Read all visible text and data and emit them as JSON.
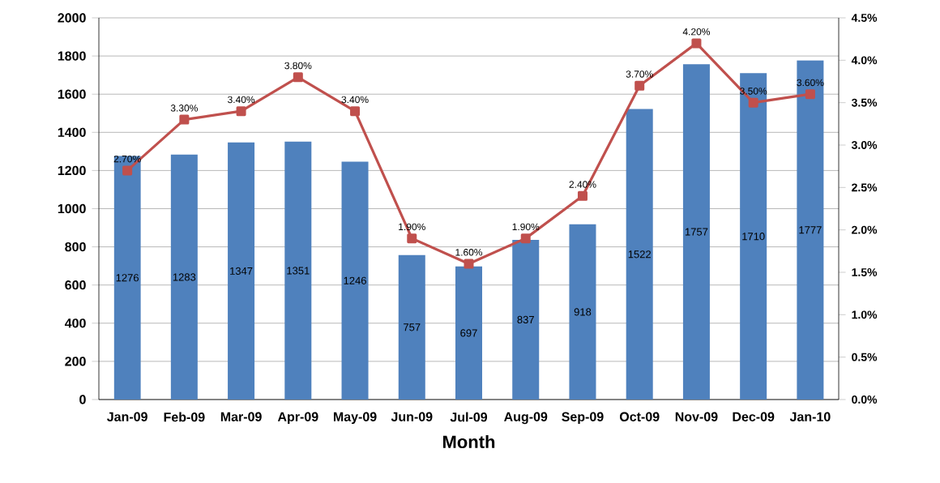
{
  "chart_data": {
    "type": "bar",
    "xlabel": "Month",
    "categories": [
      "Jan-09",
      "Feb-09",
      "Mar-09",
      "Apr-09",
      "May-09",
      "Jun-09",
      "Jul-09",
      "Aug-09",
      "Sep-09",
      "Oct-09",
      "Nov-09",
      "Dec-09",
      "Jan-10"
    ],
    "series": [
      {
        "color": "#4f81bd",
        "values": [
          1276,
          1283,
          1347,
          1351,
          1246,
          757,
          697,
          837,
          918,
          1522,
          1757,
          1710,
          1777
        ],
        "value_labels": [
          "1276",
          "1283",
          "1347",
          "1351",
          "1246",
          "757",
          "697",
          "837",
          "918",
          "1522",
          "1757",
          "1710",
          "1777"
        ]
      },
      {
        "type": "line",
        "axis": "y2",
        "color": "#c0504d",
        "marker": "square",
        "values": [
          2.7,
          3.3,
          3.4,
          3.8,
          3.4,
          1.9,
          1.6,
          1.9,
          2.4,
          3.7,
          4.2,
          3.5,
          3.6
        ],
        "value_labels": [
          "2.70%",
          "3.30%",
          "3.40%",
          "3.80%",
          "3.40%",
          "1.90%",
          "1.60%",
          "1.90%",
          "2.40%",
          "3.70%",
          "4.20%",
          "3.50%",
          "3.60%"
        ]
      }
    ],
    "ylim": [
      0,
      2000
    ],
    "yticks": [
      0,
      200,
      400,
      600,
      800,
      1000,
      1200,
      1400,
      1600,
      1800,
      2000
    ],
    "y2lim": [
      0,
      4.5
    ],
    "y2ticks": [
      {
        "value": 0,
        "label": "0.0%"
      },
      {
        "value": 0.5,
        "label": "0.5%"
      },
      {
        "value": 1,
        "label": "1.0%"
      },
      {
        "value": 1.5,
        "label": "1.5%"
      },
      {
        "value": 2,
        "label": "2.0%"
      },
      {
        "value": 2.5,
        "label": "2.5%"
      },
      {
        "value": 3,
        "label": "3.0%"
      },
      {
        "value": 3.5,
        "label": "3.5%"
      },
      {
        "value": 4,
        "label": "4.0%"
      },
      {
        "value": 4.5,
        "label": "4.5%"
      }
    ],
    "grid": "y"
  }
}
